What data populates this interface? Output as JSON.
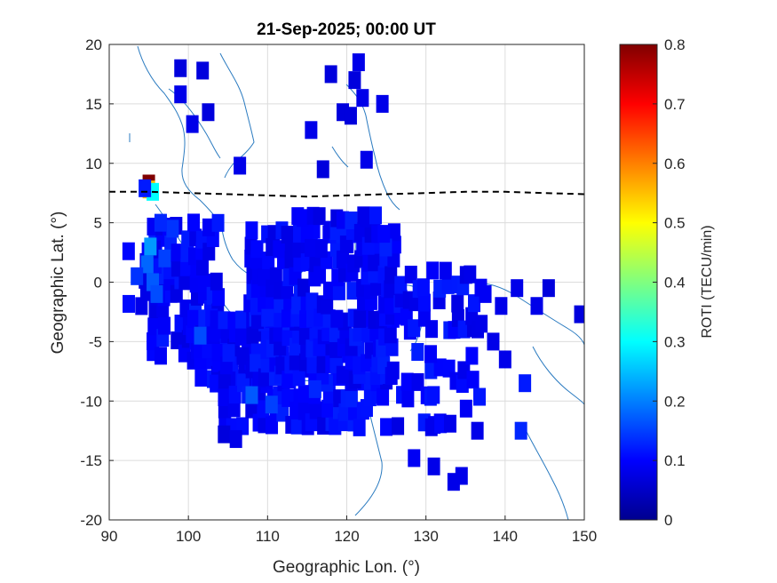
{
  "chart_data": {
    "type": "heatmap",
    "title": "21-Sep-2025; 00:00 UT",
    "xlabel": "Geographic Lon. (°)",
    "ylabel": "Geographic Lat. (°)",
    "xlim": [
      90,
      150
    ],
    "ylim": [
      -20,
      20
    ],
    "xticks": [
      "90",
      "100",
      "110",
      "120",
      "130",
      "140",
      "150"
    ],
    "yticks": [
      "20",
      "15",
      "10",
      "5",
      "0",
      "-5",
      "-10",
      "-15",
      "-20"
    ],
    "grid": true,
    "colorbar": {
      "label": "ROTI (TECU/min)",
      "range": [
        0,
        0.8
      ],
      "ticks": [
        "0.8",
        "0.7",
        "0.6",
        "0.5",
        "0.4",
        "0.3",
        "0.2",
        "0.1",
        "0"
      ],
      "colormap": "jet"
    },
    "magnetic_equator": [
      [
        90,
        7.6
      ],
      [
        95,
        7.6
      ],
      [
        100,
        7.5
      ],
      [
        105,
        7.4
      ],
      [
        110,
        7.3
      ],
      [
        115,
        7.2
      ],
      [
        120,
        7.3
      ],
      [
        125,
        7.4
      ],
      [
        130,
        7.5
      ],
      [
        135,
        7.6
      ],
      [
        140,
        7.6
      ],
      [
        145,
        7.5
      ],
      [
        150,
        7.4
      ]
    ],
    "cells": [
      {
        "lon": 95.0,
        "lat": 8.3,
        "v": 0.8
      },
      {
        "lon": 95.0,
        "lat": 7.8,
        "v": 0.55
      },
      {
        "lon": 95.5,
        "lat": 7.6,
        "v": 0.3
      },
      {
        "lon": 94.5,
        "lat": 7.9,
        "v": 0.12
      },
      {
        "lon": 95.2,
        "lat": 3.0,
        "v": 0.22
      },
      {
        "lon": 94.8,
        "lat": 1.5,
        "v": 0.18
      },
      {
        "lon": 95.5,
        "lat": 0.0,
        "v": 0.17
      },
      {
        "lon": 96.0,
        "lat": -1.0,
        "v": 0.16
      },
      {
        "lon": 97.0,
        "lat": 2.0,
        "v": 0.15
      },
      {
        "lon": 101.5,
        "lat": -4.5,
        "v": 0.16
      },
      {
        "lon": 98.0,
        "lat": 4.5,
        "v": 0.14
      },
      {
        "lon": 93.5,
        "lat": 0.5,
        "v": 0.14
      },
      {
        "lon": 96.5,
        "lat": 5.0,
        "v": 0.13
      },
      {
        "lon": 108.0,
        "lat": -9.5,
        "v": 0.17
      },
      {
        "lon": 110.5,
        "lat": -10.3,
        "v": 0.15
      },
      {
        "lon": 116.0,
        "lat": -9.0,
        "v": 0.13
      },
      {
        "lon": 110.0,
        "lat": -3.0,
        "v": 0.12
      },
      {
        "lon": 99.0,
        "lat": 18.0,
        "v": 0.07
      },
      {
        "lon": 101.8,
        "lat": 17.8,
        "v": 0.07
      },
      {
        "lon": 99.0,
        "lat": 15.8,
        "v": 0.08
      },
      {
        "lon": 100.5,
        "lat": 13.3,
        "v": 0.08
      },
      {
        "lon": 102.5,
        "lat": 14.3,
        "v": 0.07
      },
      {
        "lon": 106.5,
        "lat": 9.8,
        "v": 0.08
      },
      {
        "lon": 115.5,
        "lat": 12.8,
        "v": 0.08
      },
      {
        "lon": 118.0,
        "lat": 17.5,
        "v": 0.07
      },
      {
        "lon": 121.5,
        "lat": 18.5,
        "v": 0.08
      },
      {
        "lon": 121.0,
        "lat": 17.0,
        "v": 0.07
      },
      {
        "lon": 122.0,
        "lat": 15.5,
        "v": 0.08
      },
      {
        "lon": 124.5,
        "lat": 15.0,
        "v": 0.08
      },
      {
        "lon": 119.5,
        "lat": 14.3,
        "v": 0.07
      },
      {
        "lon": 120.5,
        "lat": 14.0,
        "v": 0.07
      },
      {
        "lon": 117.0,
        "lat": 9.5,
        "v": 0.07
      },
      {
        "lon": 122.5,
        "lat": 10.3,
        "v": 0.08
      },
      {
        "lon": 104.5,
        "lat": -12.8,
        "v": 0.07
      },
      {
        "lon": 106.0,
        "lat": -13.2,
        "v": 0.08
      },
      {
        "lon": 145.5,
        "lat": -0.5,
        "v": 0.07
      },
      {
        "lon": 149.5,
        "lat": -2.7,
        "v": 0.07
      },
      {
        "lon": 142.5,
        "lat": -8.5,
        "v": 0.12
      },
      {
        "lon": 142.0,
        "lat": -12.5,
        "v": 0.13
      },
      {
        "lon": 128.5,
        "lat": -14.8,
        "v": 0.09
      },
      {
        "lon": 131.0,
        "lat": -15.5,
        "v": 0.08
      },
      {
        "lon": 133.5,
        "lat": -16.8,
        "v": 0.08
      },
      {
        "lon": 134.5,
        "lat": -16.3,
        "v": 0.08
      },
      {
        "lon": 136.5,
        "lat": -12.5,
        "v": 0.08
      },
      {
        "lon": 140.0,
        "lat": -6.5,
        "v": 0.08
      },
      {
        "lon": 138.5,
        "lat": -5.0,
        "v": 0.08
      },
      {
        "lon": 137.0,
        "lat": -3.5,
        "v": 0.08
      },
      {
        "lon": 139.5,
        "lat": -2.0,
        "v": 0.08
      },
      {
        "lon": 141.5,
        "lat": -0.5,
        "v": 0.08
      },
      {
        "lon": 144.0,
        "lat": -2.0,
        "v": 0.08
      },
      {
        "lon": 137.5,
        "lat": -1.0,
        "v": 0.09
      }
    ],
    "cluster_fill": {
      "value": 0.1
    }
  }
}
